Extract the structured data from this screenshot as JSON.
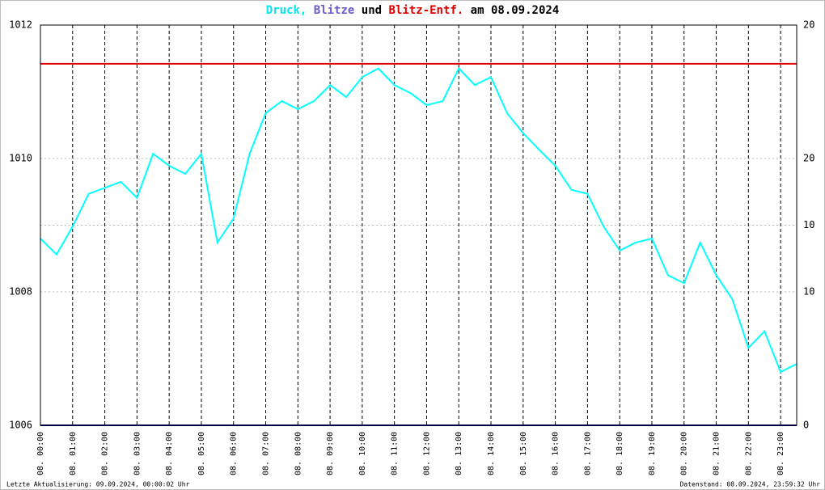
{
  "chart_data": {
    "type": "line",
    "title_parts": [
      {
        "text": "Druck,",
        "color": "#00e5ee"
      },
      {
        "text": "Blitze",
        "color": "#6a5acd"
      },
      {
        "text": "und",
        "color": "#000000"
      },
      {
        "text": "Blitz-Entf.",
        "color": "#e00000"
      },
      {
        "text": "am 08.09.2024",
        "color": "#000000"
      }
    ],
    "footer_left": "Letzte Aktualisierung: 09.09.2024, 00:00:02 Uhr",
    "footer_right": "Datenstand: 08.09.2024, 23:59:32 Uhr",
    "xlim": [
      0,
      23.5
    ],
    "xticks": [
      {
        "value": 0,
        "label": "08. 00:00"
      },
      {
        "value": 1,
        "label": "08. 01:00"
      },
      {
        "value": 2,
        "label": "08. 02:00"
      },
      {
        "value": 3,
        "label": "08. 03:00"
      },
      {
        "value": 4,
        "label": "08. 04:00"
      },
      {
        "value": 5,
        "label": "08. 05:00"
      },
      {
        "value": 6,
        "label": "08. 06:00"
      },
      {
        "value": 7,
        "label": "08. 07:00"
      },
      {
        "value": 8,
        "label": "08. 08:00"
      },
      {
        "value": 9,
        "label": "08. 09:00"
      },
      {
        "value": 10,
        "label": "08. 10:00"
      },
      {
        "value": 11,
        "label": "08. 11:00"
      },
      {
        "value": 12,
        "label": "08. 12:00"
      },
      {
        "value": 13,
        "label": "08. 13:00"
      },
      {
        "value": 14,
        "label": "08. 14:00"
      },
      {
        "value": 15,
        "label": "08. 15:00"
      },
      {
        "value": 16,
        "label": "08. 16:00"
      },
      {
        "value": 17,
        "label": "08. 17:00"
      },
      {
        "value": 18,
        "label": "08. 18:00"
      },
      {
        "value": 19,
        "label": "08. 19:00"
      },
      {
        "value": 20,
        "label": "08. 20:00"
      },
      {
        "value": 21,
        "label": "08. 21:00"
      },
      {
        "value": 22,
        "label": "08. 22:00"
      },
      {
        "value": 23,
        "label": "08. 23:00"
      }
    ],
    "ylim": [
      1006,
      1012
    ],
    "yticks": [
      1006,
      1008,
      1010,
      1012
    ],
    "y2lim": [
      0,
      20
    ],
    "y2ticks": [
      0,
      10,
      20
    ],
    "y2color": "#000000",
    "y3lim": [
      0,
      30
    ],
    "y3ticks": [
      10,
      20
    ],
    "y3color": "#e00000",
    "grid": true,
    "series": [
      {
        "name": "Druck",
        "color": "#00ffff",
        "axis": "y",
        "x": [
          0,
          0.5,
          1,
          1.5,
          2,
          2.5,
          3,
          3.5,
          4,
          4.5,
          5,
          5.5,
          6,
          6.5,
          7,
          7.5,
          8,
          8.5,
          9,
          9.5,
          10,
          10.5,
          11,
          11.5,
          12,
          12.5,
          13,
          13.5,
          14,
          14.5,
          15,
          15.5,
          16,
          16.5,
          17,
          17.5,
          18,
          18.5,
          19,
          19.5,
          20,
          20.5,
          21,
          21.5,
          22,
          22.5,
          23,
          23.5
        ],
        "values": [
          1008.8,
          1008.56,
          1008.98,
          1009.47,
          1009.56,
          1009.65,
          1009.41,
          1010.07,
          1009.89,
          1009.77,
          1010.07,
          1008.74,
          1009.1,
          1010.07,
          1010.68,
          1010.86,
          1010.74,
          1010.86,
          1011.1,
          1010.92,
          1011.22,
          1011.35,
          1011.1,
          1010.98,
          1010.8,
          1010.86,
          1011.35,
          1011.1,
          1011.22,
          1010.68,
          1010.38,
          1010.13,
          1009.89,
          1009.53,
          1009.47,
          1008.98,
          1008.62,
          1008.74,
          1008.8,
          1008.25,
          1008.13,
          1008.74,
          1008.25,
          1007.89,
          1007.16,
          1007.41,
          1006.8,
          1006.92
        ]
      },
      {
        "name": "Blitze",
        "color": "#000080",
        "axis": "y2",
        "x": [
          0,
          23.5
        ],
        "values": [
          0,
          0
        ]
      },
      {
        "name": "Blitz-Entf.",
        "color": "#e00000",
        "axis": "y3",
        "x": [
          0,
          23.5
        ],
        "values": [
          27.1,
          27.1
        ]
      }
    ]
  }
}
